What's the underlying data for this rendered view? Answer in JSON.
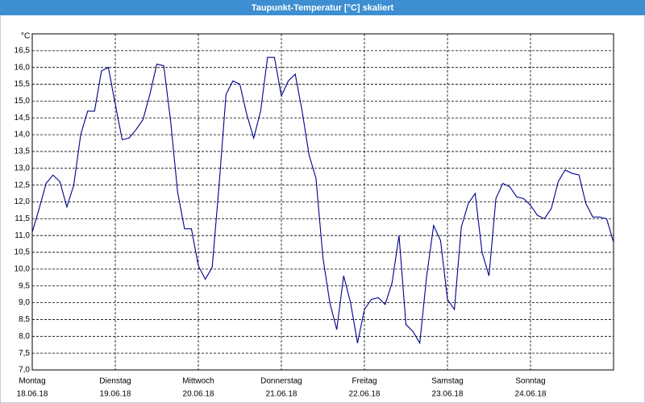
{
  "chart_data": {
    "type": "line",
    "title": "Taupunkt-Temperatur [°C] skaliert",
    "y_unit": "°C",
    "x": [
      0,
      2,
      4,
      6,
      8,
      10,
      12,
      14,
      16,
      18,
      20,
      22,
      24,
      26,
      28,
      30,
      32,
      34,
      36,
      38,
      40,
      42,
      44,
      46,
      48,
      50,
      52,
      54,
      56,
      58,
      60,
      62,
      64,
      66,
      68,
      70,
      72,
      74,
      76,
      78,
      80,
      82,
      84,
      86,
      88,
      90,
      92,
      94,
      96,
      98,
      100,
      102,
      104,
      106,
      108,
      110,
      112,
      114,
      116,
      118,
      120,
      122,
      124,
      126,
      128,
      130,
      132,
      134,
      136,
      138,
      140,
      142,
      144,
      146,
      148,
      150,
      152,
      154,
      156,
      158,
      160,
      162,
      164,
      166,
      168
    ],
    "series": [
      {
        "name": "Taupunkt",
        "color": "#00008b",
        "values": [
          11.1,
          11.8,
          12.55,
          12.8,
          12.6,
          11.85,
          12.5,
          14.0,
          14.7,
          14.7,
          15.9,
          16.0,
          14.9,
          13.85,
          13.9,
          14.15,
          14.45,
          15.2,
          16.1,
          16.05,
          14.4,
          12.3,
          11.2,
          11.2,
          10.1,
          9.7,
          10.05,
          12.5,
          15.2,
          15.6,
          15.5,
          14.6,
          13.9,
          14.7,
          16.3,
          16.3,
          15.15,
          15.6,
          15.8,
          14.7,
          13.4,
          12.7,
          10.35,
          9.0,
          8.2,
          9.8,
          9.0,
          7.8,
          8.8,
          9.1,
          9.15,
          8.95,
          9.6,
          11.0,
          8.35,
          8.15,
          7.8,
          9.8,
          11.3,
          10.85,
          9.1,
          8.8,
          11.25,
          11.95,
          12.25,
          10.5,
          9.8,
          12.1,
          12.55,
          12.45,
          12.15,
          12.1,
          11.9,
          11.6,
          11.5,
          11.8,
          12.6,
          12.95,
          12.85,
          12.8,
          11.95,
          11.55,
          11.55,
          11.5,
          10.8
        ]
      }
    ],
    "xlim": [
      0,
      168
    ],
    "xticks": [
      {
        "value": 0,
        "label": "Montag"
      },
      {
        "value": 24,
        "label": "Dienstag"
      },
      {
        "value": 48,
        "label": "Mittwoch"
      },
      {
        "value": 72,
        "label": "Donnerstag"
      },
      {
        "value": 96,
        "label": "Freitag"
      },
      {
        "value": 120,
        "label": "Samstag"
      },
      {
        "value": 144,
        "label": "Sonntag"
      }
    ],
    "xtick_dates": [
      "18.06.18",
      "19.06.18",
      "20.06.18",
      "21.06.18",
      "22.06.18",
      "23.06.18",
      "24.06.18"
    ],
    "ylim": [
      7,
      17
    ],
    "yticks": [
      {
        "value": 7,
        "label": "7,0"
      },
      {
        "value": 7.5,
        "label": "7,5"
      },
      {
        "value": 8,
        "label": "8,0"
      },
      {
        "value": 8.5,
        "label": "8,5"
      },
      {
        "value": 9,
        "label": "9,0"
      },
      {
        "value": 9.5,
        "label": "9,5"
      },
      {
        "value": 10,
        "label": "10,0"
      },
      {
        "value": 10.5,
        "label": "10,5"
      },
      {
        "value": 11,
        "label": "11,0"
      },
      {
        "value": 11.5,
        "label": "11,5"
      },
      {
        "value": 12,
        "label": "12,0"
      },
      {
        "value": 12.5,
        "label": "12,5"
      },
      {
        "value": 13,
        "label": "13,0"
      },
      {
        "value": 13.5,
        "label": "13,5"
      },
      {
        "value": 14,
        "label": "14,0"
      },
      {
        "value": 14.5,
        "label": "14,5"
      },
      {
        "value": 15,
        "label": "15,0"
      },
      {
        "value": 15.5,
        "label": "15,5"
      },
      {
        "value": 16,
        "label": "16,0"
      },
      {
        "value": 16.5,
        "label": "16,5"
      }
    ],
    "grid": true
  }
}
